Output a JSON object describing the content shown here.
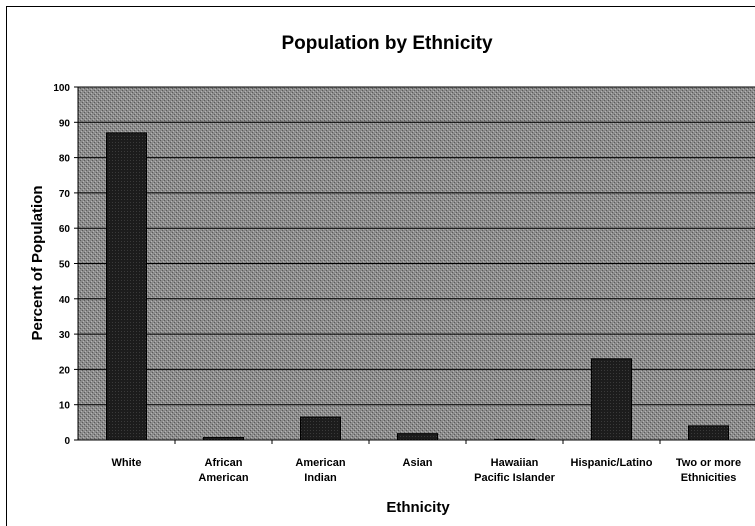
{
  "chart_data": {
    "type": "bar",
    "title": "Population by Ethnicity",
    "xlabel": "Ethnicity",
    "ylabel": "Percent of Population",
    "ylim": [
      0,
      100
    ],
    "yticks": [
      0,
      10,
      20,
      30,
      40,
      50,
      60,
      70,
      80,
      90,
      100
    ],
    "categories": [
      [
        "White"
      ],
      [
        "African",
        "American"
      ],
      [
        "American",
        "Indian"
      ],
      [
        "Asian"
      ],
      [
        "Hawaiian",
        "Pacific Islander"
      ],
      [
        "Hispanic/Latino"
      ],
      [
        "Two or more",
        "Ethnicities"
      ]
    ],
    "values": [
      87,
      0.7,
      6.5,
      1.8,
      0.1,
      23,
      4
    ],
    "grid": true,
    "legend": "none",
    "colors": {
      "plot_bg": "#8a8a8a",
      "bar": "#1e1e1e",
      "grid": "#000000"
    }
  }
}
